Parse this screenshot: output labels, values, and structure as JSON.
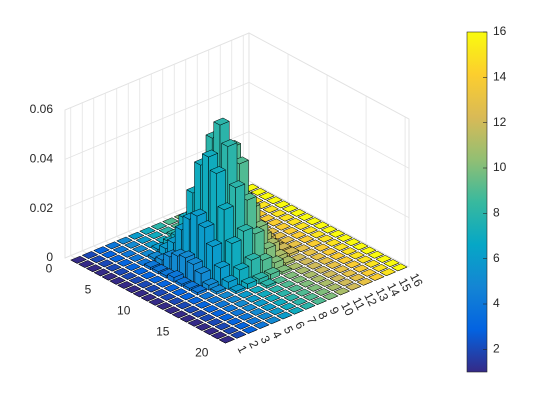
{
  "chart_data": {
    "type": "bar3",
    "z": [
      [
        0,
        0,
        0,
        0,
        0,
        0,
        0,
        0,
        0,
        0,
        0,
        0,
        0,
        0,
        0,
        0
      ],
      [
        0,
        0,
        0,
        0,
        0,
        0,
        0,
        0,
        0,
        0,
        0,
        0,
        0,
        0,
        0,
        0
      ],
      [
        0,
        0,
        0,
        0,
        0,
        0,
        0,
        0.001,
        0,
        0,
        0,
        0,
        0,
        0,
        0,
        0
      ],
      [
        0,
        0,
        0,
        0,
        0,
        0.001,
        0.002,
        0.002,
        0.002,
        0.001,
        0,
        0,
        0,
        0,
        0,
        0
      ],
      [
        0,
        0,
        0,
        0,
        0.001,
        0.003,
        0.006,
        0.008,
        0.006,
        0.003,
        0.001,
        0,
        0,
        0,
        0,
        0
      ],
      [
        0,
        0,
        0,
        0.001,
        0.002,
        0.007,
        0.015,
        0.018,
        0.015,
        0.007,
        0.002,
        0.001,
        0,
        0,
        0,
        0
      ],
      [
        0,
        0,
        0,
        0.001,
        0.005,
        0.014,
        0.027,
        0.034,
        0.027,
        0.014,
        0.005,
        0.001,
        0,
        0,
        0,
        0
      ],
      [
        0,
        0,
        0,
        0.001,
        0.007,
        0.02,
        0.04,
        0.049,
        0.04,
        0.02,
        0.007,
        0.001,
        0,
        0,
        0,
        0
      ],
      [
        0,
        0,
        0,
        0.002,
        0.008,
        0.023,
        0.045,
        0.056,
        0.045,
        0.023,
        0.008,
        0.002,
        0,
        0,
        0,
        0
      ],
      [
        0,
        0,
        0,
        0.001,
        0.007,
        0.02,
        0.04,
        0.049,
        0.04,
        0.02,
        0.007,
        0.001,
        0,
        0,
        0,
        0
      ],
      [
        0,
        0,
        0,
        0.001,
        0.005,
        0.014,
        0.027,
        0.034,
        0.027,
        0.014,
        0.005,
        0.001,
        0,
        0,
        0,
        0
      ],
      [
        0,
        0,
        0,
        0.001,
        0.002,
        0.007,
        0.015,
        0.018,
        0.015,
        0.007,
        0.002,
        0.001,
        0,
        0,
        0,
        0
      ],
      [
        0,
        0,
        0,
        0,
        0.001,
        0.003,
        0.006,
        0.008,
        0.006,
        0.003,
        0.001,
        0,
        0,
        0,
        0,
        0
      ],
      [
        0,
        0,
        0,
        0,
        0,
        0.001,
        0.002,
        0.002,
        0.002,
        0.001,
        0,
        0,
        0,
        0,
        0,
        0
      ],
      [
        0,
        0,
        0,
        0,
        0,
        0,
        0,
        0.001,
        0,
        0,
        0,
        0,
        0,
        0,
        0,
        0
      ],
      [
        0,
        0,
        0,
        0,
        0,
        0,
        0,
        0,
        0,
        0,
        0,
        0,
        0,
        0,
        0,
        0
      ],
      [
        0,
        0,
        0,
        0,
        0,
        0,
        0,
        0,
        0,
        0,
        0,
        0,
        0,
        0,
        0,
        0
      ],
      [
        0,
        0,
        0,
        0,
        0,
        0,
        0,
        0,
        0,
        0,
        0,
        0,
        0,
        0,
        0,
        0
      ],
      [
        0,
        0,
        0,
        0,
        0,
        0,
        0,
        0,
        0,
        0,
        0,
        0,
        0,
        0,
        0,
        0
      ],
      [
        0,
        0,
        0,
        0,
        0,
        0,
        0,
        0,
        0,
        0,
        0,
        0,
        0,
        0,
        0,
        0
      ]
    ],
    "xlim": [
      0.5,
      16.5
    ],
    "xticks": [
      1,
      2,
      3,
      4,
      5,
      6,
      7,
      8,
      9,
      10,
      11,
      12,
      13,
      14,
      15,
      16
    ],
    "ylim": [
      0,
      20.5
    ],
    "yticks": [
      0,
      5,
      10,
      15,
      20
    ],
    "zlim": [
      0,
      0.06
    ],
    "zticks": [
      0,
      0.02,
      0.04,
      0.06
    ],
    "grid": true,
    "colormap": [
      "#352a87",
      "#0363e1",
      "#1485d4",
      "#06a7c6",
      "#38b99e",
      "#92bf73",
      "#d9ba56",
      "#fcce2e",
      "#f9fb0e"
    ],
    "clim": [
      1,
      16
    ],
    "colorbar_ticks": [
      2,
      4,
      6,
      8,
      10,
      12,
      14,
      16
    ]
  }
}
